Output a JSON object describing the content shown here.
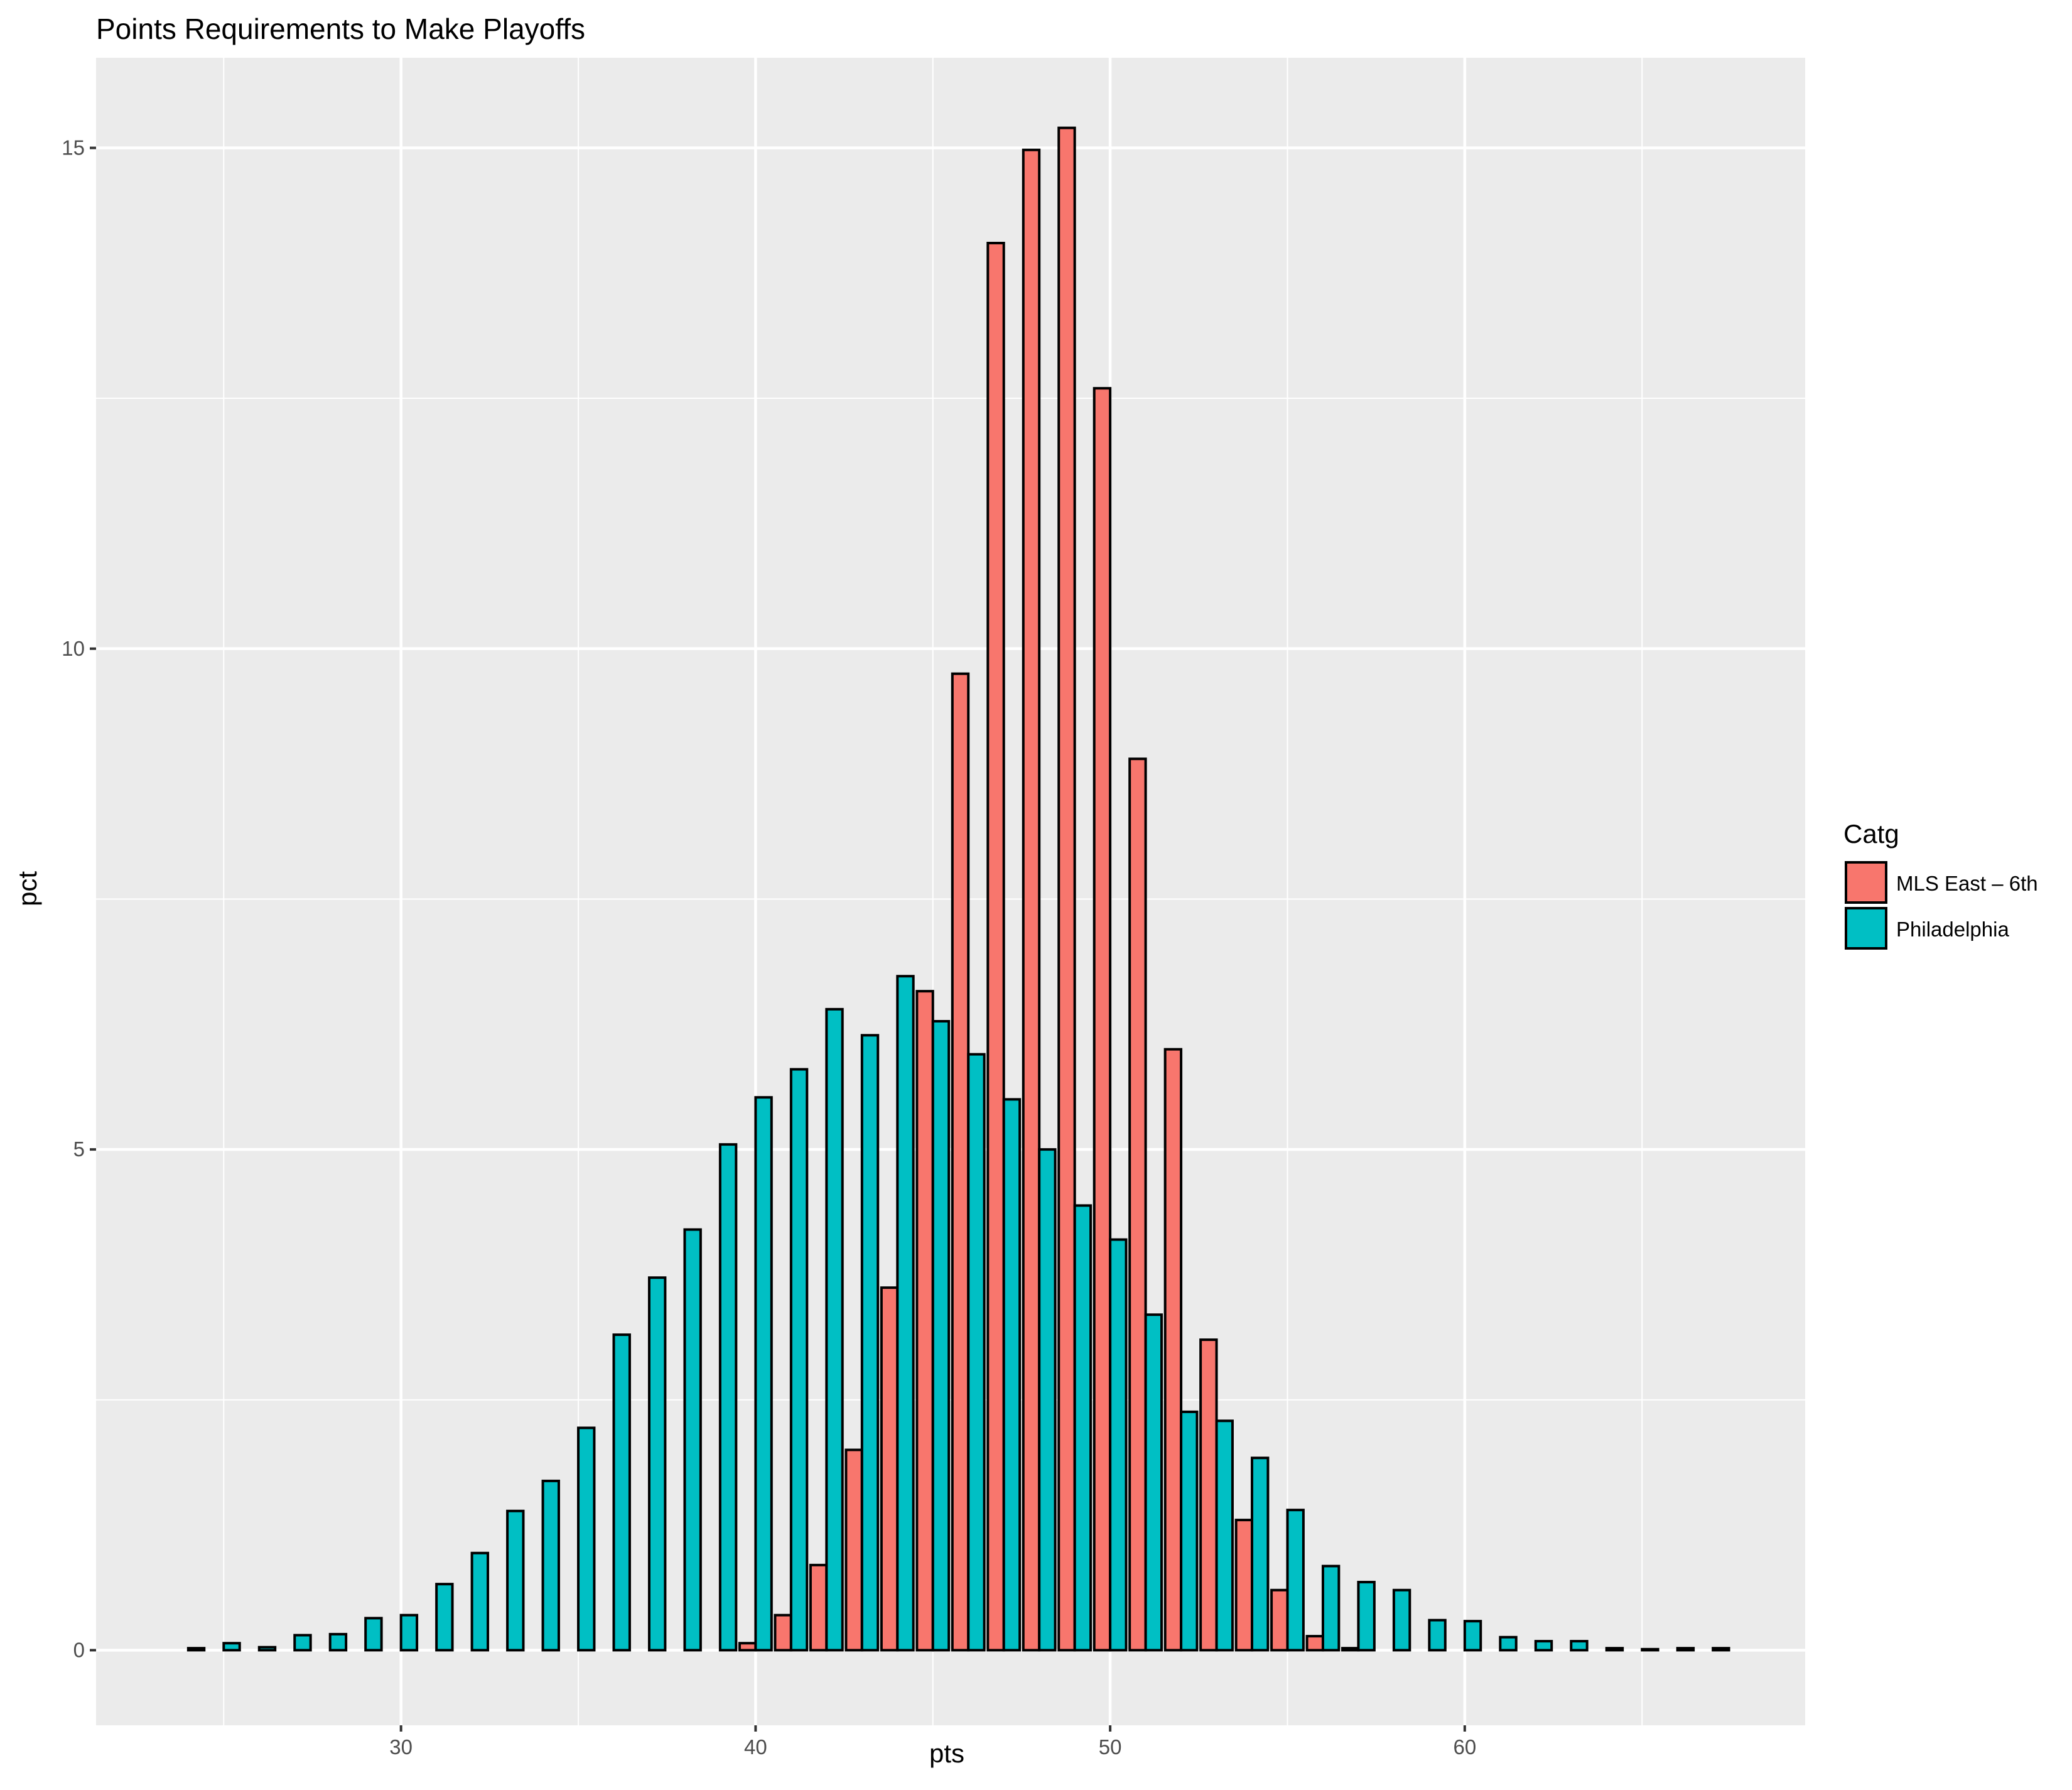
{
  "chart_data": {
    "type": "bar",
    "title": "Points Requirements to Make Playoffs",
    "xlabel": "pts",
    "ylabel": "pct",
    "xlim": [
      21.4,
      69.6
    ],
    "ylim": [
      -0.75,
      15.9
    ],
    "x_ticks": [
      30,
      40,
      50,
      60
    ],
    "x_minor_ticks": [
      25,
      35,
      45,
      55,
      65
    ],
    "y_ticks": [
      0,
      5,
      10,
      15
    ],
    "y_minor_ticks": [
      2.5,
      7.5,
      12.5
    ],
    "grid": true,
    "bar_width": 0.9,
    "legend": {
      "title": "Catg",
      "position": "right",
      "entries": [
        "MLS East – 6th",
        "Philadelphia"
      ]
    },
    "x": [
      24,
      25,
      26,
      27,
      28,
      29,
      30,
      31,
      32,
      33,
      34,
      35,
      36,
      37,
      38,
      39,
      40,
      41,
      42,
      43,
      44,
      45,
      46,
      47,
      48,
      49,
      50,
      51,
      52,
      53,
      54,
      55,
      56,
      57,
      58,
      59,
      60,
      61,
      62,
      63,
      64,
      65,
      66,
      67
    ],
    "series": [
      {
        "name": "MLS East – 6th",
        "color": "#F8766D",
        "values": [
          0,
          0,
          0,
          0,
          0,
          0,
          0,
          0,
          0,
          0,
          0,
          0,
          0,
          0,
          0,
          0,
          0.07,
          0.35,
          0.85,
          2.0,
          3.62,
          6.58,
          9.75,
          14.05,
          14.98,
          15.2,
          12.6,
          8.9,
          6.0,
          3.1,
          1.3,
          0.6,
          0.14,
          0.02,
          0,
          0,
          0,
          0,
          0,
          0,
          0,
          0,
          0,
          0
        ]
      },
      {
        "name": "Philadelphia",
        "color": "#00BFC4",
        "values": [
          0.02,
          0.07,
          0.03,
          0.15,
          0.16,
          0.32,
          0.35,
          0.66,
          0.97,
          1.39,
          1.69,
          2.22,
          3.15,
          3.72,
          4.2,
          5.05,
          5.52,
          5.8,
          6.4,
          6.14,
          6.73,
          6.28,
          5.95,
          5.5,
          5.0,
          4.44,
          4.1,
          3.35,
          2.38,
          2.29,
          1.92,
          1.4,
          0.84,
          0.68,
          0.6,
          0.3,
          0.29,
          0.13,
          0.09,
          0.09,
          0.02,
          0.01,
          0.02,
          0.02
        ]
      }
    ]
  }
}
